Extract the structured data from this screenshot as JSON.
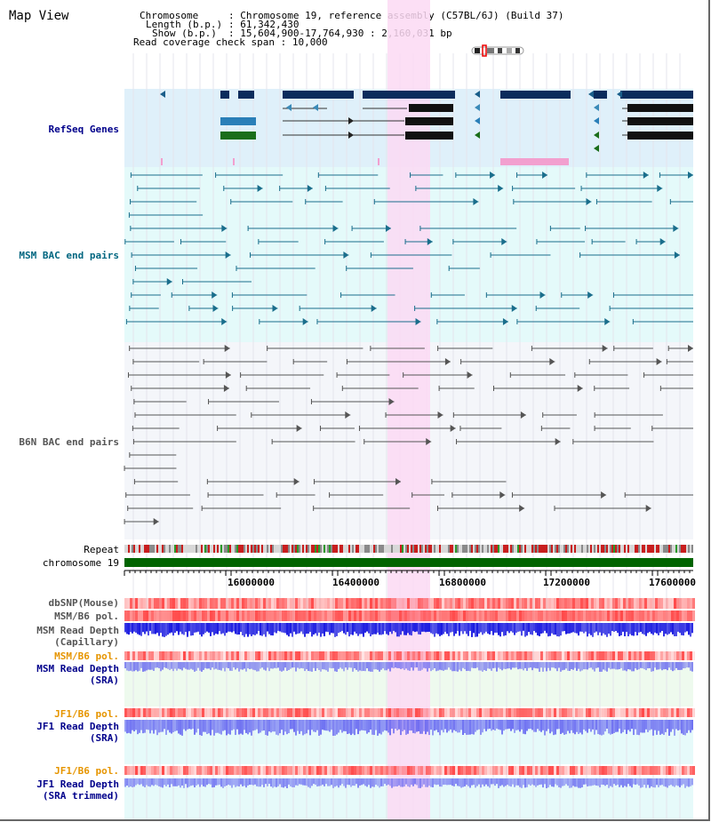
{
  "title": "Map View",
  "header": {
    "chromosome_key": "Chromosome",
    "chromosome_val": "Chromosome 19, reference assembly (C57BL/6J) (Build 37)",
    "length_key": "Length (b.p.)",
    "length_val": "61,342,430",
    "show_key": "Show (b.p.)",
    "show_val": "15,604,900-17,764,930 : 2,160,031 bp",
    "span_key": "Read coverage check span",
    "span_val": "10,000"
  },
  "tracks": {
    "refseq": "RefSeq Genes",
    "msm_bac": "MSM BAC end pairs",
    "b6n_bac": "B6N BAC end pairs",
    "repeat": "Repeat",
    "chromosome": "chromosome 19",
    "dbsnp": "dbSNP(Mouse)",
    "msm_b6_pol1": "MSM/B6 pol.",
    "msm_depth_cap1": "MSM Read Depth",
    "msm_depth_cap2": "(Capillary)",
    "msm_b6_pol2": "MSM/B6 pol.",
    "msm_depth_sra1": "MSM Read Depth",
    "msm_depth_sra2": "(SRA)",
    "jf1_b6_pol1": "JF1/B6 pol.",
    "jf1_depth_sra1": "JF1 Read Depth",
    "jf1_depth_sra2": "(SRA)",
    "jf1_b6_pol2": "JF1/B6 pol.",
    "jf1_depth_trim1": "JF1 Read Depth",
    "jf1_depth_trim2": "(SRA trimmed)"
  },
  "axis_ticks": [
    "16000000",
    "16400000",
    "16800000",
    "17200000",
    "17600000"
  ],
  "colors": {
    "refseq_bg": "#dff0fa",
    "refseq_gene": "#0b2c5c",
    "msm_bg": "#e4fafa",
    "msm_line": "#1a6e8c",
    "b6n_bg": "#f4f6fa",
    "b6n_line": "#555555",
    "highlight": "#fbd9f3",
    "chromosome": "#006400",
    "polymorphism": "#ff4a4a",
    "depth": "#1a1ae0",
    "label_navy": "#00008b",
    "label_orange": "#e69500",
    "label_teal": "#006680"
  }
}
